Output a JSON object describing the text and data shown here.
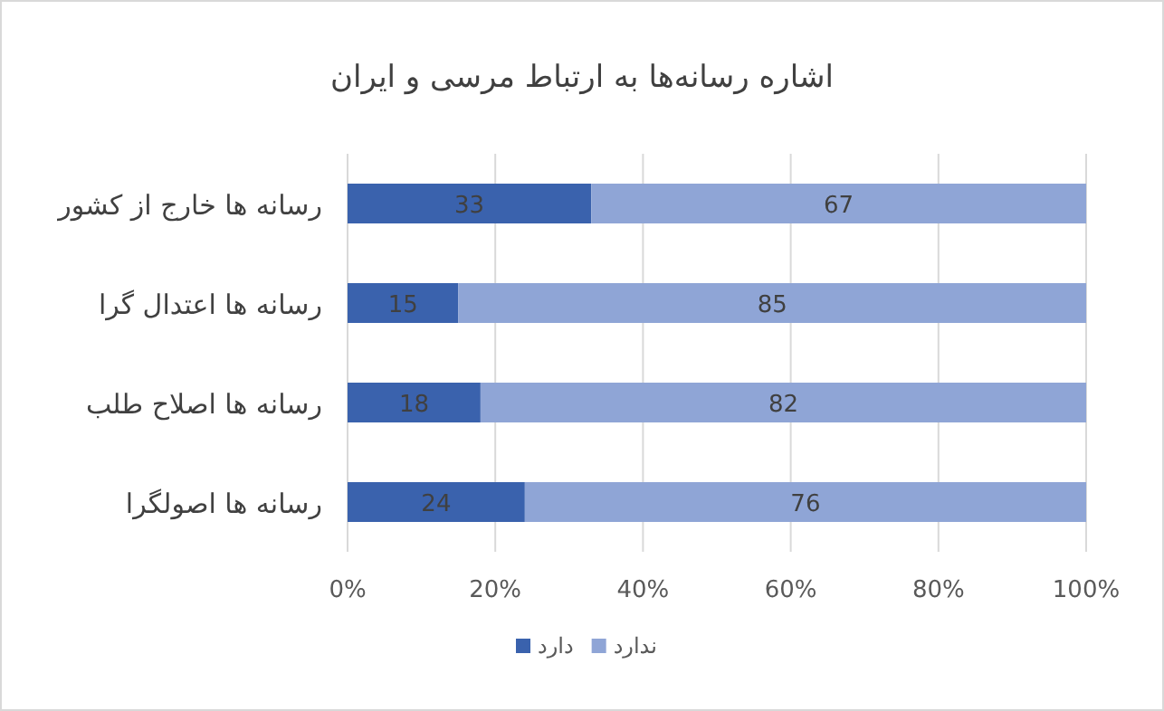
{
  "chart_data": {
    "type": "bar",
    "orientation": "horizontal",
    "stacked": true,
    "title": "اشاره رسانه‌ها به ارتباط مرسی و ایران",
    "categories": [
      "رسانه ها  خارج از کشور",
      "رسانه ها اعتدال گرا",
      "رسانه ها اصلاح طلب",
      "رسانه ها اصولگرا"
    ],
    "series": [
      {
        "name": "دارد",
        "color": "#3a62ad",
        "values": [
          33,
          15,
          18,
          24
        ]
      },
      {
        "name": "ندارد",
        "color": "#8fa5d6",
        "values": [
          67,
          85,
          82,
          76
        ]
      }
    ],
    "xlim": [
      0,
      100
    ],
    "xticks": [
      {
        "value": 0,
        "label": "0%"
      },
      {
        "value": 20,
        "label": "20%"
      },
      {
        "value": 40,
        "label": "40%"
      },
      {
        "value": 60,
        "label": "60%"
      },
      {
        "value": 80,
        "label": "80%"
      },
      {
        "value": 100,
        "label": "100%"
      }
    ],
    "grid": "x",
    "legend": "bottom",
    "data_labels": true
  }
}
